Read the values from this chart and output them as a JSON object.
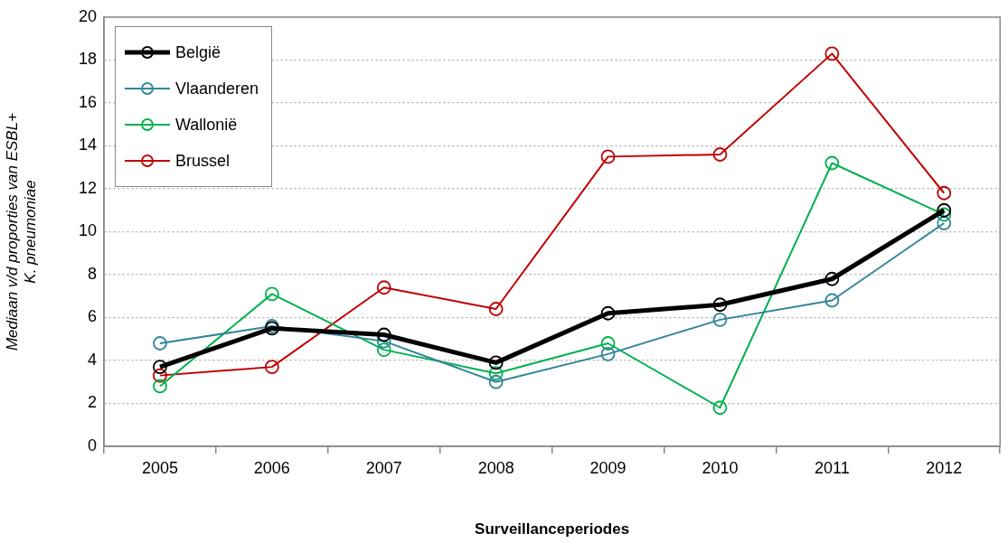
{
  "chart_data": {
    "type": "line",
    "xlabel": "Surveillanceperiodes",
    "ylabel": [
      "Mediaan v/d proporties van ESBL+",
      "K. pneumoniae"
    ],
    "categories": [
      "2005",
      "2006",
      "2007",
      "2008",
      "2009",
      "2010",
      "2011",
      "2012"
    ],
    "ylim": [
      0,
      20
    ],
    "yticks": [
      0,
      2,
      4,
      6,
      8,
      10,
      12,
      14,
      16,
      18,
      20
    ],
    "grid": "y",
    "legend": "top left",
    "marker": "circle",
    "line_style": "solid",
    "series": [
      {
        "name": "België",
        "color": "#000000",
        "values": [
          3.7,
          5.5,
          5.2,
          3.9,
          6.2,
          6.6,
          7.8,
          11.0
        ]
      },
      {
        "name": "Vlaanderen",
        "color": "#31849b",
        "values": [
          4.8,
          5.6,
          4.9,
          3.0,
          4.3,
          5.9,
          6.8,
          10.4
        ]
      },
      {
        "name": "Wallonië",
        "color": "#00b050",
        "values": [
          2.8,
          7.1,
          4.5,
          3.4,
          4.8,
          1.8,
          13.2,
          10.8
        ]
      },
      {
        "name": "Brussel",
        "color": "#c00000",
        "values": [
          3.3,
          3.7,
          7.4,
          6.4,
          13.5,
          13.6,
          18.3,
          11.8
        ]
      }
    ]
  }
}
